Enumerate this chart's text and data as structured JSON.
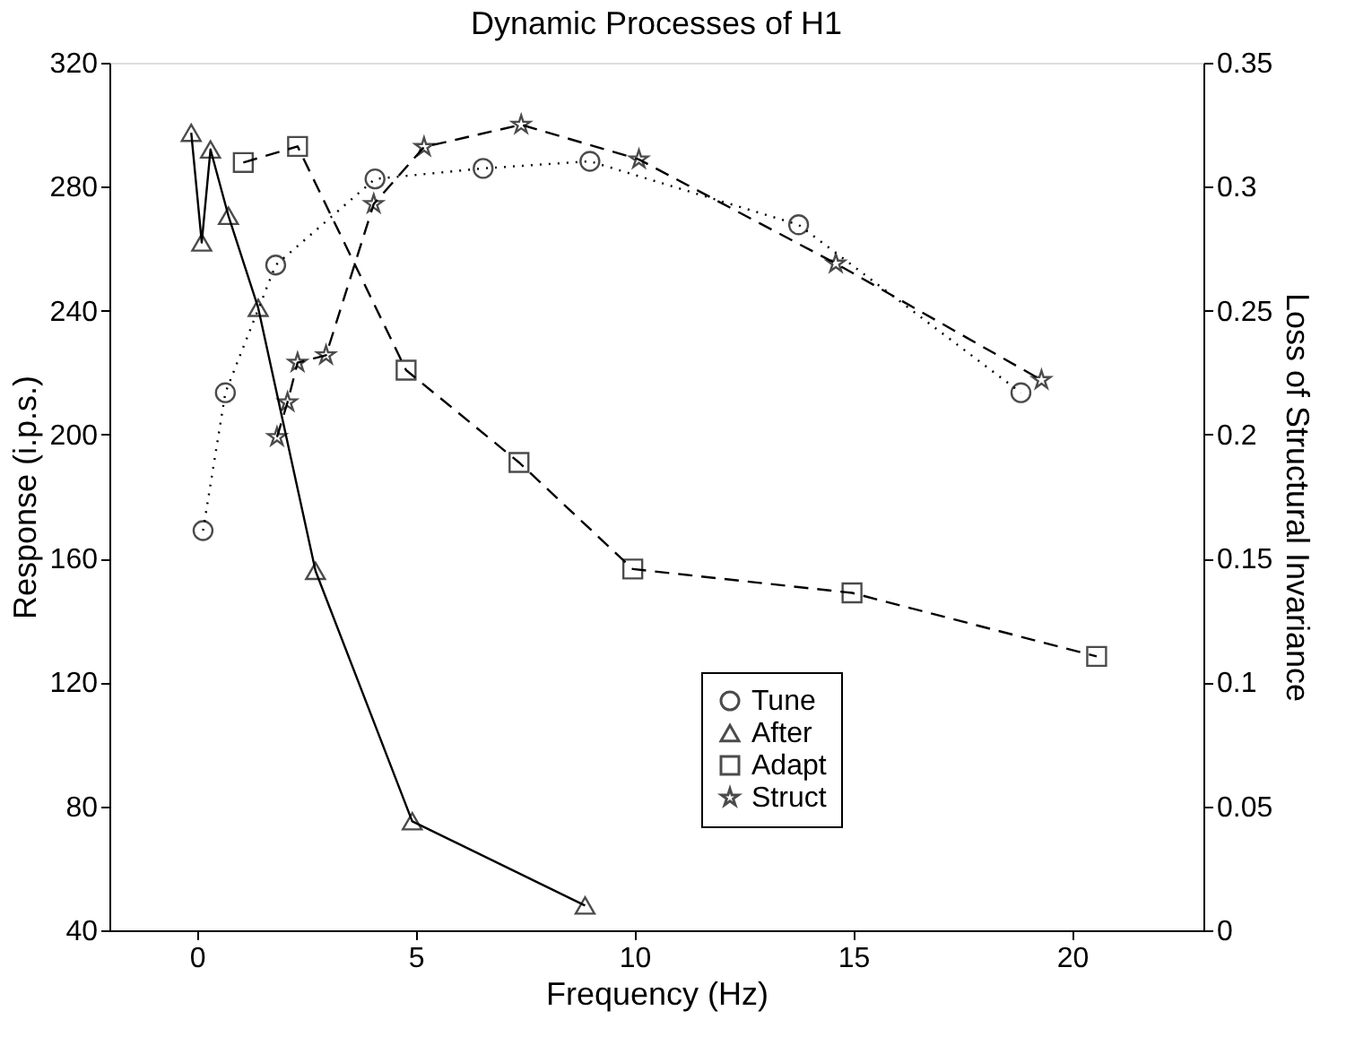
{
  "chart_data": {
    "type": "line",
    "title": "Dynamic Processes of H1",
    "xlabel": "Frequency (Hz)",
    "ylabel": "Response (i.p.s.)",
    "y2label": "Loss of Structural Invariance",
    "xlim": [
      -2,
      23
    ],
    "xticks": [
      0,
      5,
      10,
      15,
      20
    ],
    "ylim": [
      40,
      320
    ],
    "yticks": [
      40,
      80,
      120,
      160,
      200,
      240,
      280,
      320
    ],
    "y2lim": [
      0,
      0.35
    ],
    "y2ticks": [
      0,
      0.05,
      0.1,
      0.15,
      0.2,
      0.25,
      0.3,
      0.35
    ],
    "grid": false,
    "legend": "bottom right",
    "series": [
      {
        "name": "Tune",
        "color": "#000000",
        "marker": "circle",
        "line_style": "dotted",
        "x": [
          0.14,
          0.65,
          1.8,
          4.07,
          6.54,
          8.98,
          13.75,
          18.83
        ],
        "values": [
          169,
          213.5,
          254.7,
          282.5,
          285.9,
          288.2,
          267.7,
          213.5
        ]
      },
      {
        "name": "After",
        "color": "#000000",
        "marker": "triangle",
        "line_style": "solid",
        "x": [
          -0.13,
          0.11,
          0.31,
          0.72,
          1.4,
          2.71,
          4.92,
          8.87
        ],
        "values": [
          297.4,
          262,
          292,
          270.6,
          240.9,
          156,
          75.2,
          48
        ]
      },
      {
        "name": "Adapt",
        "color": "#000000",
        "marker": "square",
        "line_style": "dashed",
        "x": [
          1.06,
          2.3,
          4.78,
          7.36,
          9.96,
          14.97,
          20.56
        ],
        "values": [
          287.8,
          293,
          220.8,
          191,
          156.6,
          148.9,
          128.4
        ]
      },
      {
        "name": "Struct",
        "color": "#000000",
        "marker": "star",
        "line_style": "dashed",
        "axis": "y2",
        "x": [
          1.83,
          2.07,
          2.3,
          2.95,
          4.04,
          5.19,
          7.41,
          10.1,
          14.6,
          19.3
        ],
        "values": [
          0.199,
          0.213,
          0.229,
          0.232,
          0.293,
          0.316,
          0.325,
          0.311,
          0.269,
          0.222
        ]
      }
    ]
  }
}
